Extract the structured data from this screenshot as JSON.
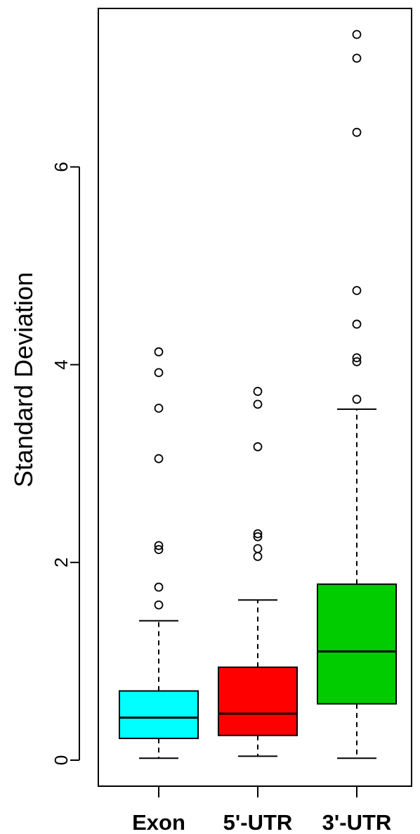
{
  "chart_data": {
    "type": "boxplot",
    "title": "",
    "xlabel": "",
    "ylabel": "Standard Deviation",
    "ylim": [
      -0.2,
      7.6
    ],
    "yticks": [
      0,
      2,
      4,
      6
    ],
    "ytick_labels": [
      "0",
      "2",
      "4",
      "6"
    ],
    "categories": [
      "Exon",
      "5'-UTR",
      "3'-UTR"
    ],
    "grid": false,
    "series": [
      {
        "category": "Exon",
        "color": "#00ffff",
        "whisker_low": 0.02,
        "q1": 0.22,
        "median": 0.43,
        "q3": 0.7,
        "whisker_high": 1.41,
        "outliers": [
          1.57,
          1.75,
          2.13,
          2.17,
          3.05,
          3.56,
          3.92,
          4.13
        ]
      },
      {
        "category": "5'-UTR",
        "color": "#ff0000",
        "whisker_low": 0.04,
        "q1": 0.25,
        "median": 0.47,
        "q3": 0.94,
        "whisker_high": 1.62,
        "outliers": [
          2.06,
          2.14,
          2.26,
          2.29,
          3.17,
          3.6,
          3.73
        ]
      },
      {
        "category": "3'-UTR",
        "color": "#00cc00",
        "whisker_low": 0.02,
        "q1": 0.57,
        "median": 1.1,
        "q3": 1.78,
        "whisker_high": 3.55,
        "outliers": [
          3.65,
          4.03,
          4.07,
          4.41,
          4.75,
          6.35,
          7.1,
          7.34
        ]
      }
    ]
  }
}
